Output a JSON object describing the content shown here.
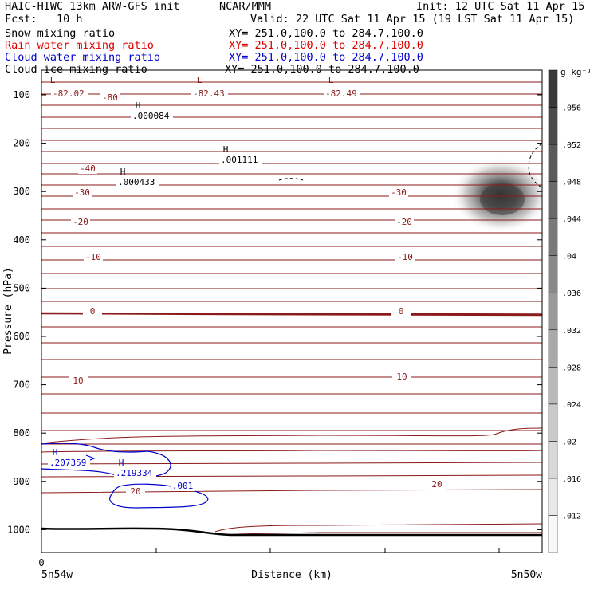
{
  "header": {
    "title": "HAIC-HIWC 13km ARW-GFS init",
    "org": "NCAR/MMM",
    "init": "Init: 12 UTC Sat 11 Apr 15",
    "fcst": "Fcst:   10 h",
    "valid": "Valid: 22 UTC Sat 11 Apr 15 (19 LST Sat 11 Apr 15)"
  },
  "legend": [
    {
      "label": "Snow mixing ratio",
      "xy": "XY= 251.0,100.0 to 284.7,100.0",
      "color": "#000000"
    },
    {
      "label": "Rain water mixing ratio",
      "xy": "XY= 251.0,100.0 to 284.7,100.0",
      "color": "#e00000"
    },
    {
      "label": "Cloud water mixing ratio",
      "xy": "XY= 251.0,100.0 to 284.7,100.0",
      "color": "#0000cc"
    },
    {
      "label": "Cloud ice mixing ratio",
      "xy": "XY= 251.0,100.0 to 284.7,100.0",
      "color": "#000000"
    }
  ],
  "chart_data": {
    "type": "heatmap",
    "xlabel": "Distance (km)",
    "ylabel": "Pressure (hPa)",
    "x_start_tick": "0",
    "x_left_label": "5n54w",
    "x_right_label": "5n50w",
    "ylim": [
      1050,
      50
    ],
    "yticks": [
      100,
      200,
      300,
      400,
      500,
      600,
      700,
      800,
      900,
      1000
    ],
    "colorbar": {
      "units": "g kg⁻¹",
      "ticks": [
        ".012",
        ".016",
        ".02",
        ".024",
        ".028",
        ".032",
        ".036",
        ".04",
        ".044",
        ".048",
        ".052",
        ".056"
      ],
      "range": [
        0.008,
        0.06
      ]
    },
    "temperature_labels": [
      "-80",
      "-40",
      "-30",
      "-30",
      "-20",
      "-20",
      "-10",
      "-10",
      "0",
      "0",
      "10",
      "10",
      "20",
      "20"
    ],
    "extrema": [
      {
        "kind": "L",
        "value": "-82.02",
        "color": "#8b1a1a"
      },
      {
        "kind": "L",
        "value": "-82.43",
        "color": "#8b1a1a"
      },
      {
        "kind": "L",
        "value": "-82.49",
        "color": "#8b1a1a"
      },
      {
        "kind": "H",
        "value": ".000084",
        "color": "#000000"
      },
      {
        "kind": "H",
        "value": ".001111",
        "color": "#000000"
      },
      {
        "kind": "H",
        "value": ".000433",
        "color": "#000000"
      },
      {
        "kind": "H",
        "value": ".207359",
        "color": "#0000cc"
      },
      {
        "kind": "H",
        "value": ".219334",
        "color": "#0000cc"
      }
    ],
    "cloud_water_contour_label": ".001",
    "snow_max_value": 0.058,
    "snow_max_pressure": 320
  }
}
